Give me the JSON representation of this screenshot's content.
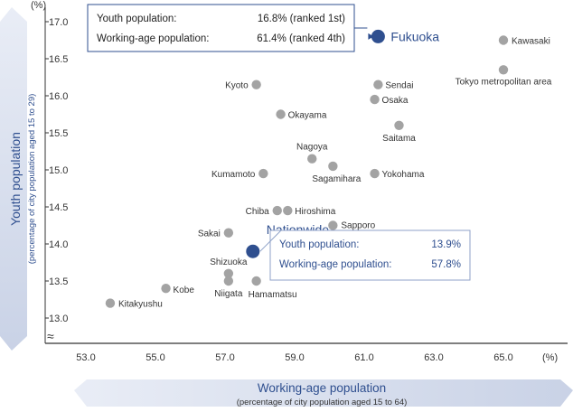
{
  "chart_data": {
    "type": "scatter",
    "xlabel": "Working-age population",
    "xlabel_sub": "(percentage of city population aged 15 to 64)",
    "ylabel": "Youth population",
    "ylabel_sub": "(percentage of city population aged 15 to 29)",
    "x_unit": "(%)",
    "y_unit": "(%)",
    "xlim": [
      52.0,
      66.0
    ],
    "ylim": [
      12.5,
      17.2
    ],
    "xticks": [
      "53.0",
      "55.0",
      "57.0",
      "59.0",
      "61.0",
      "63.0",
      "65.0"
    ],
    "yticks": [
      "13.0",
      "13.5",
      "14.0",
      "14.5",
      "15.0",
      "15.5",
      "16.0",
      "16.5",
      "17.0"
    ],
    "axis_break": "≈",
    "grid": false,
    "points": [
      {
        "name": "Fukuoka",
        "x": 61.4,
        "y": 16.8,
        "highlight": true
      },
      {
        "name": "Kawasaki",
        "x": 65.0,
        "y": 16.75
      },
      {
        "name": "Tokyo metropolitan area",
        "x": 65.0,
        "y": 16.35
      },
      {
        "name": "Kyoto",
        "x": 57.9,
        "y": 16.15
      },
      {
        "name": "Sendai",
        "x": 61.4,
        "y": 16.15
      },
      {
        "name": "Osaka",
        "x": 61.3,
        "y": 15.95
      },
      {
        "name": "Okayama",
        "x": 58.6,
        "y": 15.75
      },
      {
        "name": "Saitama",
        "x": 62.0,
        "y": 15.6
      },
      {
        "name": "Nagoya",
        "x": 59.5,
        "y": 15.15
      },
      {
        "name": "Sagamihara",
        "x": 60.1,
        "y": 15.05
      },
      {
        "name": "Kumamoto",
        "x": 58.1,
        "y": 14.95
      },
      {
        "name": "Yokohama",
        "x": 61.3,
        "y": 14.95
      },
      {
        "name": "Chiba",
        "x": 58.5,
        "y": 14.45
      },
      {
        "name": "Hiroshima",
        "x": 58.8,
        "y": 14.45
      },
      {
        "name": "Sapporo",
        "x": 60.1,
        "y": 14.25
      },
      {
        "name": "Sakai",
        "x": 57.1,
        "y": 14.15
      },
      {
        "name": "Nationwide",
        "x": 57.8,
        "y": 13.9,
        "highlight": true
      },
      {
        "name": "Shizuoka",
        "x": 57.1,
        "y": 13.6
      },
      {
        "name": "Niigata",
        "x": 57.1,
        "y": 13.5
      },
      {
        "name": "Hamamatsu",
        "x": 57.9,
        "y": 13.5
      },
      {
        "name": "Kobe",
        "x": 55.3,
        "y": 13.4
      },
      {
        "name": "Kitakyushu",
        "x": 53.7,
        "y": 13.2
      }
    ],
    "annotations": [
      {
        "target": "Fukuoka",
        "lines": [
          {
            "label": "Youth population:",
            "value": "16.8% (ranked 1st)"
          },
          {
            "label": "Working-age population:",
            "value": "61.4% (ranked 4th)"
          }
        ]
      },
      {
        "target": "Nationwide",
        "lines": [
          {
            "label": "Youth population:",
            "value": "13.9%"
          },
          {
            "label": "Working-age population:",
            "value": "57.8%"
          }
        ]
      }
    ],
    "colors": {
      "point": "#a3a3a3",
      "highlight": "#2f4f8f",
      "arrow": "#dde3f0",
      "text": "#333333"
    }
  }
}
